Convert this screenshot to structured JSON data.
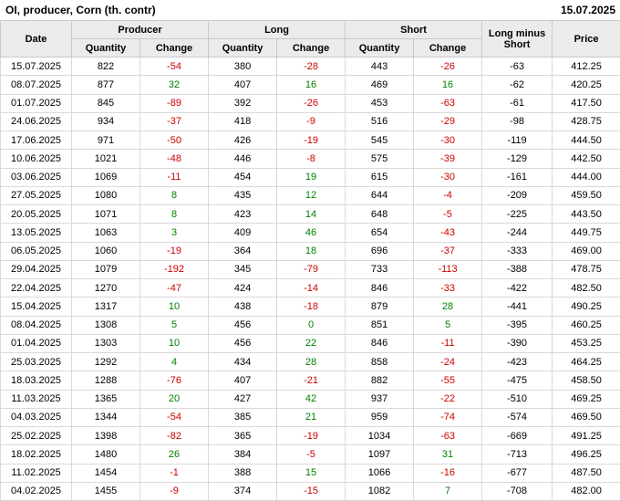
{
  "header": {
    "title": "OI, producer, Corn (th. contr)",
    "date": "15.07.2025"
  },
  "colors": {
    "negative": "#cc0000",
    "positive": "#008000",
    "header_bg": "#ebebeb"
  },
  "table": {
    "col_groups": {
      "date": "Date",
      "producer": "Producer",
      "long": "Long",
      "short": "Short",
      "long_minus_short": "Long minus Short",
      "price": "Price"
    },
    "sub_headers": {
      "quantity": "Quantity",
      "change": "Change"
    },
    "rows": [
      {
        "date": "15.07.2025",
        "producer_qty": "822",
        "producer_chg": "-54",
        "long_qty": "380",
        "long_chg": "-28",
        "short_qty": "443",
        "short_chg": "-26",
        "long_minus_short": "-63",
        "price": "412.25"
      },
      {
        "date": "08.07.2025",
        "producer_qty": "877",
        "producer_chg": "32",
        "long_qty": "407",
        "long_chg": "16",
        "short_qty": "469",
        "short_chg": "16",
        "long_minus_short": "-62",
        "price": "420.25"
      },
      {
        "date": "01.07.2025",
        "producer_qty": "845",
        "producer_chg": "-89",
        "long_qty": "392",
        "long_chg": "-26",
        "short_qty": "453",
        "short_chg": "-63",
        "long_minus_short": "-61",
        "price": "417.50"
      },
      {
        "date": "24.06.2025",
        "producer_qty": "934",
        "producer_chg": "-37",
        "long_qty": "418",
        "long_chg": "-9",
        "short_qty": "516",
        "short_chg": "-29",
        "long_minus_short": "-98",
        "price": "428.75"
      },
      {
        "date": "17.06.2025",
        "producer_qty": "971",
        "producer_chg": "-50",
        "long_qty": "426",
        "long_chg": "-19",
        "short_qty": "545",
        "short_chg": "-30",
        "long_minus_short": "-119",
        "price": "444.50"
      },
      {
        "date": "10.06.2025",
        "producer_qty": "1021",
        "producer_chg": "-48",
        "long_qty": "446",
        "long_chg": "-8",
        "short_qty": "575",
        "short_chg": "-39",
        "long_minus_short": "-129",
        "price": "442.50"
      },
      {
        "date": "03.06.2025",
        "producer_qty": "1069",
        "producer_chg": "-11",
        "long_qty": "454",
        "long_chg": "19",
        "short_qty": "615",
        "short_chg": "-30",
        "long_minus_short": "-161",
        "price": "444.00"
      },
      {
        "date": "27.05.2025",
        "producer_qty": "1080",
        "producer_chg": "8",
        "long_qty": "435",
        "long_chg": "12",
        "short_qty": "644",
        "short_chg": "-4",
        "long_minus_short": "-209",
        "price": "459.50"
      },
      {
        "date": "20.05.2025",
        "producer_qty": "1071",
        "producer_chg": "8",
        "long_qty": "423",
        "long_chg": "14",
        "short_qty": "648",
        "short_chg": "-5",
        "long_minus_short": "-225",
        "price": "443.50"
      },
      {
        "date": "13.05.2025",
        "producer_qty": "1063",
        "producer_chg": "3",
        "long_qty": "409",
        "long_chg": "46",
        "short_qty": "654",
        "short_chg": "-43",
        "long_minus_short": "-244",
        "price": "449.75"
      },
      {
        "date": "06.05.2025",
        "producer_qty": "1060",
        "producer_chg": "-19",
        "long_qty": "364",
        "long_chg": "18",
        "short_qty": "696",
        "short_chg": "-37",
        "long_minus_short": "-333",
        "price": "469.00"
      },
      {
        "date": "29.04.2025",
        "producer_qty": "1079",
        "producer_chg": "-192",
        "long_qty": "345",
        "long_chg": "-79",
        "short_qty": "733",
        "short_chg": "-113",
        "long_minus_short": "-388",
        "price": "478.75"
      },
      {
        "date": "22.04.2025",
        "producer_qty": "1270",
        "producer_chg": "-47",
        "long_qty": "424",
        "long_chg": "-14",
        "short_qty": "846",
        "short_chg": "-33",
        "long_minus_short": "-422",
        "price": "482.50"
      },
      {
        "date": "15.04.2025",
        "producer_qty": "1317",
        "producer_chg": "10",
        "long_qty": "438",
        "long_chg": "-18",
        "short_qty": "879",
        "short_chg": "28",
        "long_minus_short": "-441",
        "price": "490.25"
      },
      {
        "date": "08.04.2025",
        "producer_qty": "1308",
        "producer_chg": "5",
        "long_qty": "456",
        "long_chg": "0",
        "short_qty": "851",
        "short_chg": "5",
        "long_minus_short": "-395",
        "price": "460.25"
      },
      {
        "date": "01.04.2025",
        "producer_qty": "1303",
        "producer_chg": "10",
        "long_qty": "456",
        "long_chg": "22",
        "short_qty": "846",
        "short_chg": "-11",
        "long_minus_short": "-390",
        "price": "453.25"
      },
      {
        "date": "25.03.2025",
        "producer_qty": "1292",
        "producer_chg": "4",
        "long_qty": "434",
        "long_chg": "28",
        "short_qty": "858",
        "short_chg": "-24",
        "long_minus_short": "-423",
        "price": "464.25"
      },
      {
        "date": "18.03.2025",
        "producer_qty": "1288",
        "producer_chg": "-76",
        "long_qty": "407",
        "long_chg": "-21",
        "short_qty": "882",
        "short_chg": "-55",
        "long_minus_short": "-475",
        "price": "458.50"
      },
      {
        "date": "11.03.2025",
        "producer_qty": "1365",
        "producer_chg": "20",
        "long_qty": "427",
        "long_chg": "42",
        "short_qty": "937",
        "short_chg": "-22",
        "long_minus_short": "-510",
        "price": "469.25"
      },
      {
        "date": "04.03.2025",
        "producer_qty": "1344",
        "producer_chg": "-54",
        "long_qty": "385",
        "long_chg": "21",
        "short_qty": "959",
        "short_chg": "-74",
        "long_minus_short": "-574",
        "price": "469.50"
      },
      {
        "date": "25.02.2025",
        "producer_qty": "1398",
        "producer_chg": "-82",
        "long_qty": "365",
        "long_chg": "-19",
        "short_qty": "1034",
        "short_chg": "-63",
        "long_minus_short": "-669",
        "price": "491.25"
      },
      {
        "date": "18.02.2025",
        "producer_qty": "1480",
        "producer_chg": "26",
        "long_qty": "384",
        "long_chg": "-5",
        "short_qty": "1097",
        "short_chg": "31",
        "long_minus_short": "-713",
        "price": "496.25"
      },
      {
        "date": "11.02.2025",
        "producer_qty": "1454",
        "producer_chg": "-1",
        "long_qty": "388",
        "long_chg": "15",
        "short_qty": "1066",
        "short_chg": "-16",
        "long_minus_short": "-677",
        "price": "487.50"
      },
      {
        "date": "04.02.2025",
        "producer_qty": "1455",
        "producer_chg": "-9",
        "long_qty": "374",
        "long_chg": "-15",
        "short_qty": "1082",
        "short_chg": "7",
        "long_minus_short": "-708",
        "price": "482.00"
      }
    ]
  }
}
